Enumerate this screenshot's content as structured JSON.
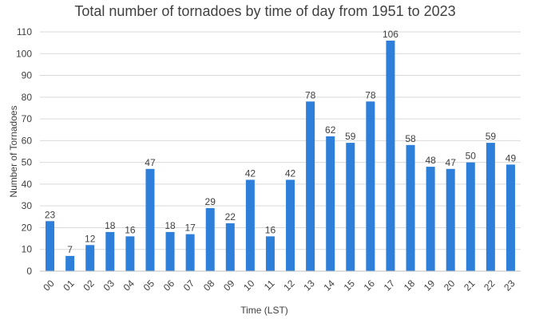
{
  "chart_data": {
    "type": "bar",
    "title": "Total number of tornadoes by time of day from 1951 to 2023",
    "xlabel": "Time (LST)",
    "ylabel": "Number of Tornadoes",
    "ylim": [
      0,
      110
    ],
    "yticks": [
      0,
      10,
      20,
      30,
      40,
      50,
      60,
      70,
      80,
      90,
      100,
      110
    ],
    "grid": true,
    "bar_color": "#2e7fd9",
    "categories": [
      "00",
      "01",
      "02",
      "03",
      "04",
      "05",
      "06",
      "07",
      "08",
      "09",
      "10",
      "11",
      "12",
      "13",
      "14",
      "15",
      "16",
      "17",
      "18",
      "19",
      "20",
      "21",
      "22",
      "23"
    ],
    "values": [
      23,
      7,
      12,
      18,
      16,
      47,
      18,
      17,
      29,
      22,
      42,
      16,
      42,
      78,
      62,
      59,
      78,
      106,
      58,
      48,
      47,
      50,
      59,
      49
    ]
  }
}
